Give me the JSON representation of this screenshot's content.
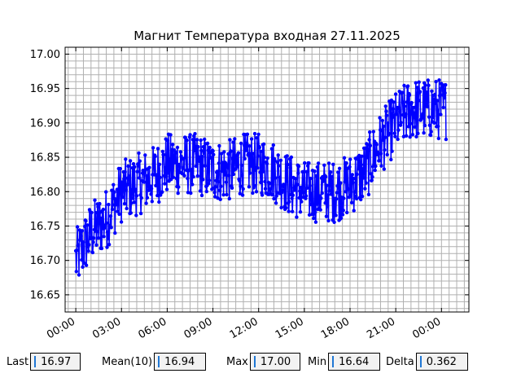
{
  "chart_data": {
    "type": "line",
    "title": "Магнит Температура входная 27.11.2025",
    "xlabel": "",
    "ylabel": "",
    "x_ticks": [
      "00:00",
      "03:00",
      "06:00",
      "09:00",
      "12:00",
      "15:00",
      "18:00",
      "21:00",
      "00:00"
    ],
    "y_ticks": [
      "16.65",
      "16.70",
      "16.75",
      "16.80",
      "16.85",
      "16.90",
      "16.95",
      "17.00"
    ],
    "x_range_hours": [
      -0.7,
      25.8
    ],
    "ylim": [
      16.625,
      17.01
    ],
    "grid": true,
    "marker": "circle",
    "line_color": "#0000ff",
    "series": [
      {
        "trend": [
          {
            "t": 0.0,
            "v": 16.7
          },
          {
            "t": 1.0,
            "v": 16.74
          },
          {
            "t": 2.0,
            "v": 16.76
          },
          {
            "t": 3.0,
            "v": 16.8
          },
          {
            "t": 4.0,
            "v": 16.81
          },
          {
            "t": 5.0,
            "v": 16.82
          },
          {
            "t": 6.0,
            "v": 16.84
          },
          {
            "t": 7.0,
            "v": 16.84
          },
          {
            "t": 8.0,
            "v": 16.84
          },
          {
            "t": 9.0,
            "v": 16.83
          },
          {
            "t": 10.0,
            "v": 16.83
          },
          {
            "t": 11.0,
            "v": 16.84
          },
          {
            "t": 12.0,
            "v": 16.84
          },
          {
            "t": 13.0,
            "v": 16.83
          },
          {
            "t": 14.0,
            "v": 16.81
          },
          {
            "t": 15.0,
            "v": 16.8
          },
          {
            "t": 16.0,
            "v": 16.8
          },
          {
            "t": 17.0,
            "v": 16.8
          },
          {
            "t": 18.0,
            "v": 16.81
          },
          {
            "t": 19.0,
            "v": 16.83
          },
          {
            "t": 20.0,
            "v": 16.87
          },
          {
            "t": 21.0,
            "v": 16.9
          },
          {
            "t": 22.0,
            "v": 16.92
          },
          {
            "t": 23.0,
            "v": 16.92
          },
          {
            "t": 24.0,
            "v": 16.92
          },
          {
            "t": 24.3,
            "v": 16.92
          }
        ],
        "amplitude": 0.045,
        "points": 700
      }
    ]
  },
  "stats": {
    "last": {
      "label": "Last",
      "value": "16.97"
    },
    "mean": {
      "label": "Mean(10)",
      "value": "16.94"
    },
    "max": {
      "label": "Max",
      "value": "17.00"
    },
    "min": {
      "label": "Min",
      "value": "16.64"
    },
    "delta": {
      "label": "Delta",
      "value": "0.362"
    }
  }
}
